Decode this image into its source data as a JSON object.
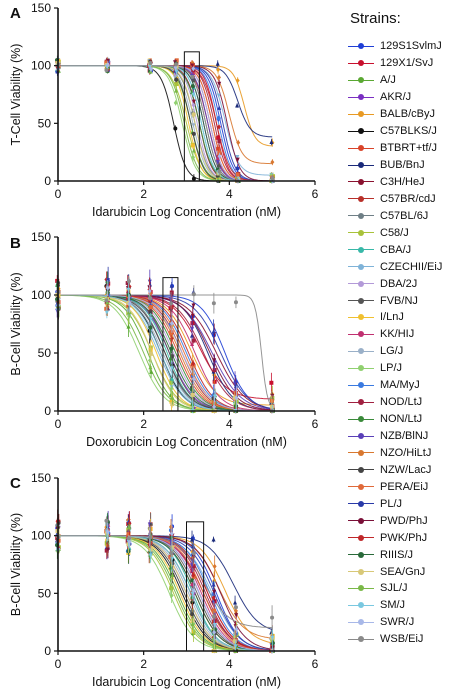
{
  "legend_title": "Strains:",
  "legend": [
    {
      "name": "129S1SvlmJ",
      "color": "#1f3fd6"
    },
    {
      "name": "129X1/SvJ",
      "color": "#c8102e"
    },
    {
      "name": "A/J",
      "color": "#5aa832"
    },
    {
      "name": "AKR/J",
      "color": "#7a2fc2"
    },
    {
      "name": "BALB/cByJ",
      "color": "#e89a24"
    },
    {
      "name": "C57BLKS/J",
      "color": "#111111"
    },
    {
      "name": "BTBRT+tf/J",
      "color": "#d9442a"
    },
    {
      "name": "BUB/BnJ",
      "color": "#1a2a7a"
    },
    {
      "name": "C3H/HeJ",
      "color": "#8a1230"
    },
    {
      "name": "C57BR/cdJ",
      "color": "#b8302a"
    },
    {
      "name": "C57BL/6J",
      "color": "#6f7f86"
    },
    {
      "name": "C58/J",
      "color": "#a8c23a"
    },
    {
      "name": "CBA/J",
      "color": "#38b8a8"
    },
    {
      "name": "CZECHII/EiJ",
      "color": "#7fb3d8"
    },
    {
      "name": "DBA/2J",
      "color": "#b39ad8"
    },
    {
      "name": "FVB/NJ",
      "color": "#555555"
    },
    {
      "name": "I/LnJ",
      "color": "#f0c030"
    },
    {
      "name": "KK/HIJ",
      "color": "#c03070"
    },
    {
      "name": "LG/J",
      "color": "#9ab0c8"
    },
    {
      "name": "LP/J",
      "color": "#90d070"
    },
    {
      "name": "MA/MyJ",
      "color": "#3a7ae0"
    },
    {
      "name": "NOD/LtJ",
      "color": "#a02040"
    },
    {
      "name": "NON/LtJ",
      "color": "#3a8a3a"
    },
    {
      "name": "NZB/BlNJ",
      "color": "#5a40b8"
    },
    {
      "name": "NZO/HiLtJ",
      "color": "#d87830"
    },
    {
      "name": "NZW/LacJ",
      "color": "#444444"
    },
    {
      "name": "PERA/EiJ",
      "color": "#e06a3a"
    },
    {
      "name": "PL/J",
      "color": "#2a3aa8"
    },
    {
      "name": "PWD/PhJ",
      "color": "#7a1038"
    },
    {
      "name": "PWK/PhJ",
      "color": "#c0282a"
    },
    {
      "name": "RIIIS/J",
      "color": "#2a6a3a"
    },
    {
      "name": "SEA/GnJ",
      "color": "#d8c878"
    },
    {
      "name": "SJL/J",
      "color": "#7ab848"
    },
    {
      "name": "SM/J",
      "color": "#7ac8e0"
    },
    {
      "name": "SWR/J",
      "color": "#a8b8e8"
    },
    {
      "name": "WSB/EiJ",
      "color": "#8a8a8a"
    }
  ],
  "chart_data": [
    {
      "type": "line",
      "panel": "A",
      "xlabel": "Idarubicin Log Concentration (nM)",
      "ylabel": "T-Cell Viability (%)",
      "xlim": [
        0,
        6
      ],
      "ylim": [
        0,
        150
      ],
      "xticks": [
        0,
        2,
        4,
        6
      ],
      "yticks": [
        0,
        50,
        100,
        150
      ],
      "highlight_box": {
        "x": [
          2.95,
          3.3
        ],
        "y": [
          0,
          112
        ]
      },
      "sample_x": [
        0,
        1.15,
        2.15,
        2.75,
        3.15,
        3.75,
        4.2,
        5.0
      ],
      "series": [
        {
          "ic50": 3.8,
          "hill": 3.0,
          "bottom": 0,
          "top": 100
        },
        {
          "ic50": 3.7,
          "hill": 3.2,
          "bottom": 0,
          "top": 100
        },
        {
          "ic50": 3.1,
          "hill": 2.8,
          "bottom": 0,
          "top": 100
        },
        {
          "ic50": 3.4,
          "hill": 3.0,
          "bottom": 0,
          "top": 100
        },
        {
          "ic50": 4.35,
          "hill": 3.5,
          "bottom": 30,
          "top": 100
        },
        {
          "ic50": 2.7,
          "hill": 3.0,
          "bottom": 0,
          "top": 100
        },
        {
          "ic50": 3.6,
          "hill": 3.0,
          "bottom": 0,
          "top": 100
        },
        {
          "ic50": 4.2,
          "hill": 3.0,
          "bottom": 38,
          "top": 100
        },
        {
          "ic50": 3.3,
          "hill": 3.0,
          "bottom": 0,
          "top": 100
        },
        {
          "ic50": 3.5,
          "hill": 2.8,
          "bottom": 0,
          "top": 100
        },
        {
          "ic50": 3.2,
          "hill": 2.8,
          "bottom": 0,
          "top": 100
        },
        {
          "ic50": 3.0,
          "hill": 2.6,
          "bottom": 0,
          "top": 100
        },
        {
          "ic50": 3.35,
          "hill": 3.0,
          "bottom": 0,
          "top": 100
        },
        {
          "ic50": 3.9,
          "hill": 2.8,
          "bottom": 5,
          "top": 100
        },
        {
          "ic50": 3.25,
          "hill": 3.0,
          "bottom": 0,
          "top": 100
        },
        {
          "ic50": 3.45,
          "hill": 3.0,
          "bottom": 0,
          "top": 100
        },
        {
          "ic50": 3.05,
          "hill": 3.0,
          "bottom": 0,
          "top": 100
        },
        {
          "ic50": 3.55,
          "hill": 3.0,
          "bottom": 0,
          "top": 100
        },
        {
          "ic50": 3.15,
          "hill": 2.8,
          "bottom": 0,
          "top": 100
        },
        {
          "ic50": 2.9,
          "hill": 2.8,
          "bottom": 0,
          "top": 100
        },
        {
          "ic50": 3.75,
          "hill": 3.0,
          "bottom": 0,
          "top": 100
        },
        {
          "ic50": 3.65,
          "hill": 3.0,
          "bottom": 0,
          "top": 100
        },
        {
          "ic50": 3.3,
          "hill": 2.8,
          "bottom": 0,
          "top": 100
        },
        {
          "ic50": 3.5,
          "hill": 3.0,
          "bottom": 0,
          "top": 100
        },
        {
          "ic50": 4.0,
          "hill": 3.0,
          "bottom": 15,
          "top": 100
        },
        {
          "ic50": 3.1,
          "hill": 3.0,
          "bottom": 0,
          "top": 100
        },
        {
          "ic50": 3.6,
          "hill": 3.0,
          "bottom": 0,
          "top": 100
        },
        {
          "ic50": 3.85,
          "hill": 3.0,
          "bottom": 0,
          "top": 100
        },
        {
          "ic50": 3.95,
          "hill": 3.0,
          "bottom": 0,
          "top": 100
        },
        {
          "ic50": 3.7,
          "hill": 2.8,
          "bottom": 0,
          "top": 100
        },
        {
          "ic50": 3.4,
          "hill": 3.0,
          "bottom": 0,
          "top": 100
        },
        {
          "ic50": 3.2,
          "hill": 3.0,
          "bottom": 0,
          "top": 100
        },
        {
          "ic50": 2.95,
          "hill": 2.8,
          "bottom": 0,
          "top": 100
        },
        {
          "ic50": 3.35,
          "hill": 3.0,
          "bottom": 0,
          "top": 100
        },
        {
          "ic50": 3.55,
          "hill": 3.0,
          "bottom": 0,
          "top": 100
        },
        {
          "ic50": 3.45,
          "hill": 3.0,
          "bottom": 0,
          "top": 100
        }
      ]
    },
    {
      "type": "line",
      "panel": "B",
      "xlabel": "Doxorubicin Log Concentration (nM)",
      "ylabel": "B-Cell Viability (%)",
      "xlim": [
        0,
        6
      ],
      "ylim": [
        0,
        150
      ],
      "xticks": [
        0,
        2,
        4,
        6
      ],
      "yticks": [
        0,
        50,
        100,
        150
      ],
      "highlight_box": {
        "x": [
          2.45,
          2.8
        ],
        "y": [
          0,
          115
        ]
      },
      "sample_x": [
        0,
        1.15,
        1.65,
        2.15,
        2.65,
        3.15,
        3.65,
        4.15,
        5.0
      ],
      "series": [
        {
          "ic50": 3.9,
          "hill": 1.6,
          "bottom": 0,
          "top": 100
        },
        {
          "ic50": 3.3,
          "hill": 1.4,
          "bottom": 10,
          "top": 100
        },
        {
          "ic50": 2.1,
          "hill": 1.6,
          "bottom": 0,
          "top": 100
        },
        {
          "ic50": 2.6,
          "hill": 1.5,
          "bottom": 0,
          "top": 100
        },
        {
          "ic50": 3.1,
          "hill": 1.5,
          "bottom": 5,
          "top": 100
        },
        {
          "ic50": 2.4,
          "hill": 1.6,
          "bottom": 0,
          "top": 100
        },
        {
          "ic50": 2.8,
          "hill": 1.5,
          "bottom": 0,
          "top": 100
        },
        {
          "ic50": 3.5,
          "hill": 1.5,
          "bottom": 0,
          "top": 100
        },
        {
          "ic50": 3.7,
          "hill": 1.3,
          "bottom": 0,
          "top": 100
        },
        {
          "ic50": 2.9,
          "hill": 1.5,
          "bottom": 0,
          "top": 100
        },
        {
          "ic50": 2.5,
          "hill": 1.6,
          "bottom": 0,
          "top": 100
        },
        {
          "ic50": 2.2,
          "hill": 1.5,
          "bottom": 0,
          "top": 100
        },
        {
          "ic50": 2.55,
          "hill": 1.6,
          "bottom": 0,
          "top": 100
        },
        {
          "ic50": 2.35,
          "hill": 1.5,
          "bottom": 0,
          "top": 100
        },
        {
          "ic50": 2.7,
          "hill": 1.5,
          "bottom": 0,
          "top": 100
        },
        {
          "ic50": 2.6,
          "hill": 1.6,
          "bottom": 0,
          "top": 100
        },
        {
          "ic50": 2.3,
          "hill": 1.6,
          "bottom": 0,
          "top": 100
        },
        {
          "ic50": 3.2,
          "hill": 1.5,
          "bottom": 0,
          "top": 100
        },
        {
          "ic50": 2.45,
          "hill": 1.5,
          "bottom": 0,
          "top": 100
        },
        {
          "ic50": 1.9,
          "hill": 1.5,
          "bottom": 0,
          "top": 100
        },
        {
          "ic50": 3.0,
          "hill": 1.5,
          "bottom": 0,
          "top": 100
        },
        {
          "ic50": 3.4,
          "hill": 1.4,
          "bottom": 0,
          "top": 100
        },
        {
          "ic50": 2.75,
          "hill": 1.5,
          "bottom": 0,
          "top": 100
        },
        {
          "ic50": 3.6,
          "hill": 1.3,
          "bottom": 0,
          "top": 100
        },
        {
          "ic50": 2.85,
          "hill": 1.5,
          "bottom": 0,
          "top": 100
        },
        {
          "ic50": 2.5,
          "hill": 1.5,
          "bottom": 0,
          "top": 100
        },
        {
          "ic50": 2.95,
          "hill": 1.5,
          "bottom": 0,
          "top": 100
        },
        {
          "ic50": 3.8,
          "hill": 1.4,
          "bottom": 0,
          "top": 100
        },
        {
          "ic50": 3.55,
          "hill": 1.4,
          "bottom": 0,
          "top": 100
        },
        {
          "ic50": 3.05,
          "hill": 1.5,
          "bottom": 0,
          "top": 100
        },
        {
          "ic50": 2.65,
          "hill": 1.5,
          "bottom": 0,
          "top": 100
        },
        {
          "ic50": 2.2,
          "hill": 1.6,
          "bottom": 0,
          "top": 100
        },
        {
          "ic50": 2.0,
          "hill": 1.5,
          "bottom": 0,
          "top": 100
        },
        {
          "ic50": 2.4,
          "hill": 1.5,
          "bottom": 0,
          "top": 100
        },
        {
          "ic50": 2.9,
          "hill": 1.4,
          "bottom": 0,
          "top": 100
        },
        {
          "ic50": 4.75,
          "hill": 6.0,
          "bottom": 0,
          "top": 100
        }
      ]
    },
    {
      "type": "line",
      "panel": "C",
      "xlabel": "Idarubicin Log Concentration (nM)",
      "ylabel": "B-Cell Viability (%)",
      "xlim": [
        0,
        6
      ],
      "ylim": [
        0,
        150
      ],
      "xticks": [
        0,
        2,
        4,
        6
      ],
      "yticks": [
        0,
        50,
        100,
        150
      ],
      "highlight_box": {
        "x": [
          3.0,
          3.4
        ],
        "y": [
          0,
          112
        ]
      },
      "sample_x": [
        0,
        1.15,
        1.65,
        2.15,
        2.65,
        3.15,
        3.65,
        4.15,
        5.0
      ],
      "series": [
        {
          "ic50": 3.7,
          "hill": 1.6,
          "bottom": 0,
          "top": 100
        },
        {
          "ic50": 3.5,
          "hill": 1.5,
          "bottom": 0,
          "top": 100
        },
        {
          "ic50": 2.8,
          "hill": 1.5,
          "bottom": 0,
          "top": 100
        },
        {
          "ic50": 3.1,
          "hill": 1.5,
          "bottom": 0,
          "top": 100
        },
        {
          "ic50": 3.9,
          "hill": 1.5,
          "bottom": 5,
          "top": 100
        },
        {
          "ic50": 2.9,
          "hill": 1.5,
          "bottom": 0,
          "top": 100
        },
        {
          "ic50": 3.3,
          "hill": 1.5,
          "bottom": 0,
          "top": 100
        },
        {
          "ic50": 4.1,
          "hill": 1.5,
          "bottom": 15,
          "top": 100
        },
        {
          "ic50": 3.4,
          "hill": 1.4,
          "bottom": 0,
          "top": 100
        },
        {
          "ic50": 3.2,
          "hill": 1.5,
          "bottom": 0,
          "top": 100
        },
        {
          "ic50": 3.0,
          "hill": 1.5,
          "bottom": 0,
          "top": 100
        },
        {
          "ic50": 2.7,
          "hill": 1.5,
          "bottom": 0,
          "top": 100
        },
        {
          "ic50": 3.15,
          "hill": 1.6,
          "bottom": 0,
          "top": 100
        },
        {
          "ic50": 3.6,
          "hill": 1.4,
          "bottom": 0,
          "top": 100
        },
        {
          "ic50": 3.0,
          "hill": 1.5,
          "bottom": 0,
          "top": 100
        },
        {
          "ic50": 3.25,
          "hill": 1.5,
          "bottom": 0,
          "top": 100
        },
        {
          "ic50": 2.85,
          "hill": 1.5,
          "bottom": 0,
          "top": 100
        },
        {
          "ic50": 3.35,
          "hill": 1.5,
          "bottom": 0,
          "top": 100
        },
        {
          "ic50": 3.05,
          "hill": 1.5,
          "bottom": 0,
          "top": 100
        },
        {
          "ic50": 2.6,
          "hill": 1.5,
          "bottom": 0,
          "top": 100
        },
        {
          "ic50": 3.55,
          "hill": 1.5,
          "bottom": 0,
          "top": 100
        },
        {
          "ic50": 3.45,
          "hill": 1.5,
          "bottom": 0,
          "top": 100
        },
        {
          "ic50": 3.1,
          "hill": 1.5,
          "bottom": 0,
          "top": 100
        },
        {
          "ic50": 3.3,
          "hill": 1.5,
          "bottom": 0,
          "top": 100
        },
        {
          "ic50": 3.75,
          "hill": 1.5,
          "bottom": 10,
          "top": 100
        },
        {
          "ic50": 2.95,
          "hill": 1.5,
          "bottom": 0,
          "top": 100
        },
        {
          "ic50": 3.4,
          "hill": 1.5,
          "bottom": 0,
          "top": 100
        },
        {
          "ic50": 3.65,
          "hill": 1.5,
          "bottom": 0,
          "top": 100
        },
        {
          "ic50": 3.8,
          "hill": 1.5,
          "bottom": 0,
          "top": 100
        },
        {
          "ic50": 3.5,
          "hill": 1.5,
          "bottom": 0,
          "top": 100
        },
        {
          "ic50": 3.2,
          "hill": 1.5,
          "bottom": 0,
          "top": 100
        },
        {
          "ic50": 3.0,
          "hill": 1.5,
          "bottom": 0,
          "top": 100
        },
        {
          "ic50": 2.75,
          "hill": 1.5,
          "bottom": 0,
          "top": 100
        },
        {
          "ic50": 3.1,
          "hill": 1.5,
          "bottom": 0,
          "top": 100
        },
        {
          "ic50": 3.3,
          "hill": 1.5,
          "bottom": 0,
          "top": 100
        },
        {
          "ic50": 3.4,
          "hill": 1.5,
          "bottom": 20,
          "top": 100
        }
      ]
    }
  ]
}
